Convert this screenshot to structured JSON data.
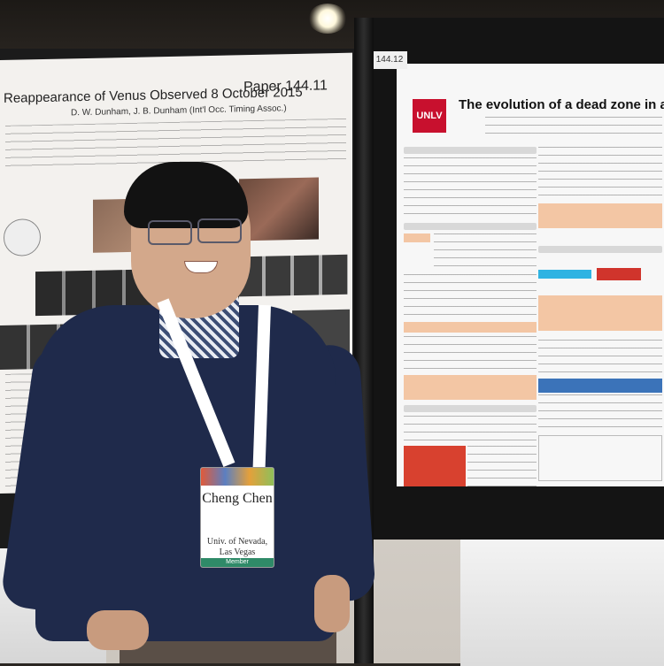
{
  "scene": {
    "ceiling_light": "ceiling-light",
    "location_tag": "144.12"
  },
  "poster_left": {
    "title": "Reappearance of Venus Observed 8 October 2015",
    "paper_number": "Paper 144.11",
    "authors": "D. W. Dunham, J. B. Dunham (Int'l Occ. Timing Assoc.)"
  },
  "poster_right": {
    "logo": "UNLV",
    "title": "The evolution of a dead zone in a circ"
  },
  "badge": {
    "name": "Cheng Chen",
    "affiliation": "Univ. of Nevada, Las Vegas",
    "role": "Member"
  },
  "colors": {
    "sweater": "#1f2a4b",
    "unlv_red": "#c8102e",
    "poster_background": "#f7f7f7"
  }
}
